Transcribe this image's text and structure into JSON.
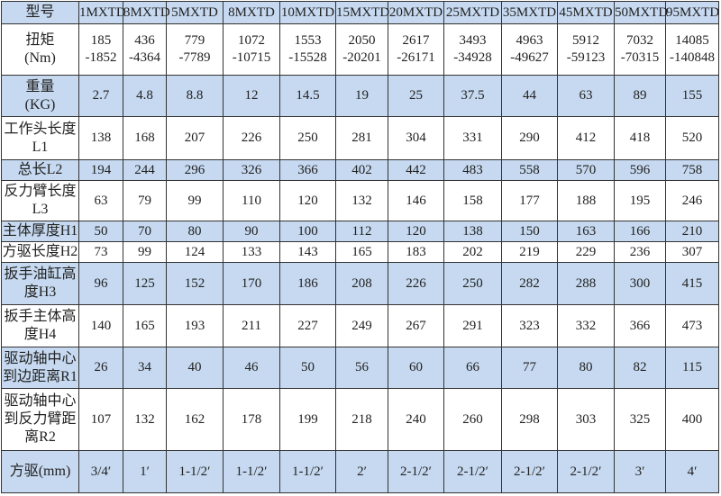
{
  "header": {
    "label": "型号",
    "models": [
      "1MXTD",
      "3MXTD",
      "5MXTD",
      "8MXTD",
      "10MXTD",
      "15MXTD",
      "20MXTD",
      "25MXTD",
      "35MXTD",
      "45MXTD",
      "50MXTD",
      "95MXTD"
    ]
  },
  "rows": [
    {
      "label": "扭矩\n(Nm)",
      "values": [
        "185\n-1852",
        "436\n-4364",
        "779\n-7789",
        "1072\n-10715",
        "1553\n-15528",
        "2050\n-20201",
        "2617\n-26171",
        "3493\n-34928",
        "4963\n-49627",
        "5912\n-59123",
        "7032\n-70315",
        "14085\n-140848"
      ]
    },
    {
      "label": "重量\n(KG)",
      "values": [
        "2.7",
        "4.8",
        "8.8",
        "12",
        "14.5",
        "19",
        "25",
        "37.5",
        "44",
        "63",
        "89",
        "155"
      ]
    },
    {
      "label": "工作头长度\nL1",
      "values": [
        "138",
        "168",
        "207",
        "226",
        "250",
        "281",
        "304",
        "331",
        "290",
        "412",
        "418",
        "520"
      ]
    },
    {
      "label": "总长L2",
      "values": [
        "194",
        "244",
        "296",
        "326",
        "366",
        "402",
        "442",
        "483",
        "558",
        "570",
        "596",
        "758"
      ]
    },
    {
      "label": "反力臂长度\nL3",
      "values": [
        "63",
        "79",
        "99",
        "110",
        "120",
        "132",
        "146",
        "158",
        "177",
        "188",
        "195",
        "246"
      ]
    },
    {
      "label": "主体厚度H1",
      "values": [
        "50",
        "70",
        "80",
        "90",
        "100",
        "112",
        "120",
        "138",
        "150",
        "163",
        "166",
        "210"
      ]
    },
    {
      "label": "方驱长度H2",
      "values": [
        "73",
        "99",
        "124",
        "133",
        "143",
        "165",
        "183",
        "202",
        "219",
        "229",
        "236",
        "307"
      ]
    },
    {
      "label": "扳手油缸高\n度H3",
      "values": [
        "96",
        "125",
        "152",
        "170",
        "186",
        "208",
        "226",
        "250",
        "282",
        "288",
        "300",
        "415"
      ]
    },
    {
      "label": "扳手主体高\n度H4",
      "values": [
        "140",
        "165",
        "193",
        "211",
        "227",
        "249",
        "267",
        "291",
        "323",
        "332",
        "366",
        "473"
      ]
    },
    {
      "label": "驱动轴中心\n到边距离R1",
      "values": [
        "26",
        "34",
        "40",
        "46",
        "50",
        "56",
        "60",
        "66",
        "77",
        "80",
        "82",
        "115"
      ]
    },
    {
      "label": "驱动轴中心\n到反力臂距\n离R2",
      "values": [
        "107",
        "132",
        "162",
        "178",
        "199",
        "218",
        "240",
        "260",
        "298",
        "303",
        "325",
        "400"
      ]
    },
    {
      "label": "方驱(mm)",
      "values": [
        "3/4′",
        "1′",
        "1-1/2′",
        "1-1/2′",
        "1-1/2′",
        "2′",
        "2-1/2′",
        "2-1/2′",
        "2-1/2′",
        "2-1/2′",
        "3′",
        "4′"
      ]
    }
  ],
  "colors": {
    "blue_row": "#c6d9f0",
    "white_row": "#ffffff",
    "border": "#333333"
  }
}
